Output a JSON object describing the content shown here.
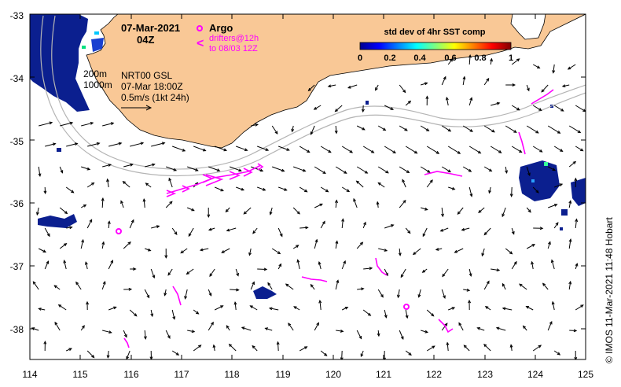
{
  "map": {
    "date": "07-Mar-2021",
    "time": "04Z",
    "argo_label": "Argo",
    "drifters_line1": "drifters@12h",
    "drifters_line2": "to 08/03 12Z",
    "drifter_glyph": "<",
    "depth_200": "200m",
    "depth_1000": "1000m",
    "product": "NRT00 GSL",
    "product_time": "07-Mar 18:00Z",
    "scale_label": "0.5m/s (1kt 24h)",
    "credit": "© IMOS 11-Mar-2021 11:48 Hobart",
    "colorbar": {
      "title": "std dev of 4hr SST comp",
      "ticks": [
        "0",
        "0.2",
        "0.4",
        "0.6",
        "0.8",
        "1"
      ]
    },
    "x_ticks": [
      "114",
      "115",
      "116",
      "117",
      "118",
      "119",
      "120",
      "121",
      "122",
      "123",
      "124",
      "125"
    ],
    "y_ticks": [
      "-33",
      "-34",
      "-35",
      "-36",
      "-37",
      "-38"
    ],
    "colors": {
      "land": "#f9c896",
      "argo": "#ff00ff",
      "sst_low": "#0b1f8f",
      "contour": "#b4b4b4"
    }
  }
}
